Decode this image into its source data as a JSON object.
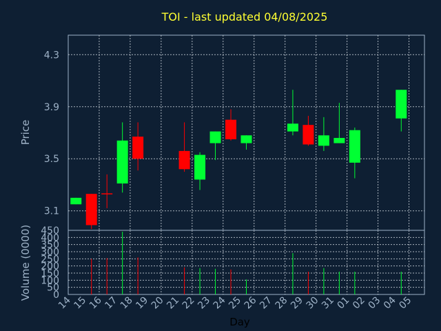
{
  "chart_data": {
    "type": "candlestick",
    "title": "TOI - last updated 04/08/2025",
    "xlabel": "Day",
    "price_panel": {
      "ylabel": "Price",
      "ylim": [
        2.95,
        4.45
      ],
      "yticks": [
        "3.1",
        "3.5",
        "3.9",
        "4.3"
      ],
      "grid": true
    },
    "volume_panel": {
      "ylabel": "Volume (0000)",
      "ylim": [
        0,
        450
      ],
      "yticks": [
        "0",
        "50",
        "100",
        "150",
        "200",
        "250",
        "300",
        "350",
        "400",
        "450"
      ],
      "grid": true
    },
    "x_ticks": [
      "14",
      "15",
      "16",
      "17",
      "18",
      "19",
      "20",
      "21",
      "22",
      "23",
      "24",
      "25",
      "26",
      "27",
      "28",
      "29",
      "30",
      "31",
      "01",
      "02",
      "03",
      "04",
      "05"
    ],
    "colors": {
      "up": "#00ff33",
      "down": "#ff0000",
      "neutral": "#ff0000"
    },
    "candles": [
      {
        "day": "14",
        "open": 3.15,
        "high": 3.2,
        "low": 3.15,
        "close": 3.2
      },
      {
        "day": "15",
        "open": 3.23,
        "high": 3.23,
        "low": 2.96,
        "close": 2.99
      },
      {
        "day": "16",
        "open": 3.23,
        "high": 3.38,
        "low": 3.12,
        "close": 3.23
      },
      {
        "day": "17",
        "open": 3.31,
        "high": 3.78,
        "low": 3.24,
        "close": 3.64
      },
      {
        "day": "18",
        "open": 3.67,
        "high": 3.78,
        "low": 3.41,
        "close": 3.5
      },
      {
        "day": "21",
        "open": 3.56,
        "high": 3.78,
        "low": 3.4,
        "close": 3.42
      },
      {
        "day": "22",
        "open": 3.34,
        "high": 3.55,
        "low": 3.26,
        "close": 3.53
      },
      {
        "day": "23",
        "open": 3.62,
        "high": 3.71,
        "low": 3.49,
        "close": 3.71
      },
      {
        "day": "24",
        "open": 3.8,
        "high": 3.88,
        "low": 3.64,
        "close": 3.65
      },
      {
        "day": "25",
        "open": 3.62,
        "high": 3.68,
        "low": 3.57,
        "close": 3.68
      },
      {
        "day": "28",
        "open": 3.71,
        "high": 4.03,
        "low": 3.68,
        "close": 3.77
      },
      {
        "day": "29",
        "open": 3.76,
        "high": 3.83,
        "low": 3.6,
        "close": 3.61
      },
      {
        "day": "30",
        "open": 3.6,
        "high": 3.82,
        "low": 3.56,
        "close": 3.68
      },
      {
        "day": "31",
        "open": 3.62,
        "high": 3.93,
        "low": 3.62,
        "close": 3.66
      },
      {
        "day": "01",
        "open": 3.47,
        "high": 3.74,
        "low": 3.35,
        "close": 3.72
      },
      {
        "day": "04",
        "open": 3.81,
        "high": 4.03,
        "low": 3.71,
        "close": 4.03
      }
    ],
    "volumes": [
      {
        "day": "15",
        "value": 250
      },
      {
        "day": "16",
        "value": 255
      },
      {
        "day": "17",
        "value": 440
      },
      {
        "day": "18",
        "value": 260
      },
      {
        "day": "21",
        "value": 190
      },
      {
        "day": "22",
        "value": 185
      },
      {
        "day": "23",
        "value": 180
      },
      {
        "day": "24",
        "value": 175
      },
      {
        "day": "25",
        "value": 105
      },
      {
        "day": "28",
        "value": 290
      },
      {
        "day": "29",
        "value": 160
      },
      {
        "day": "30",
        "value": 185
      },
      {
        "day": "31",
        "value": 160
      },
      {
        "day": "01",
        "value": 160
      },
      {
        "day": "04",
        "value": 160
      }
    ]
  }
}
